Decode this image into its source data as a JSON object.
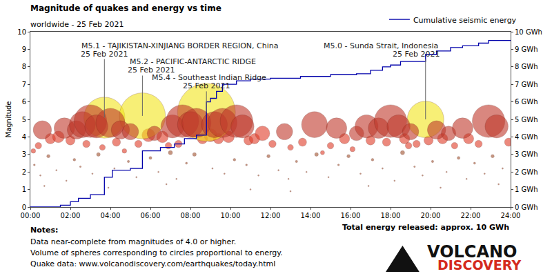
{
  "chart_data": {
    "type": "bubble",
    "title": "Magnitude of quakes and energy vs time",
    "subtitle": "worldwide - 25 Feb 2021",
    "y_label": "Magnitude",
    "xlim": [
      0,
      24
    ],
    "xticks": [
      {
        "value": 0,
        "label": "00:00"
      },
      {
        "value": 2,
        "label": "02:00"
      },
      {
        "value": 4,
        "label": "04:00"
      },
      {
        "value": 6,
        "label": "06:00"
      },
      {
        "value": 8,
        "label": "08:00"
      },
      {
        "value": 10,
        "label": "10:00"
      },
      {
        "value": 12,
        "label": "12:00"
      },
      {
        "value": 14,
        "label": "14:00"
      },
      {
        "value": 16,
        "label": "16:00"
      },
      {
        "value": 18,
        "label": "18:00"
      },
      {
        "value": 20,
        "label": "20:00"
      },
      {
        "value": 22,
        "label": "22:00"
      },
      {
        "value": 24,
        "label": "24:00"
      }
    ],
    "ylim": [
      0,
      10
    ],
    "yticks": [
      0,
      1,
      2,
      3,
      4,
      5,
      6,
      7,
      8,
      9,
      10
    ],
    "y2lim": [
      0,
      10
    ],
    "y2ticks": [
      {
        "value": 0,
        "label": "0 GWh"
      },
      {
        "value": 1,
        "label": "1 GWh"
      },
      {
        "value": 2,
        "label": "2 GWh"
      },
      {
        "value": 3,
        "label": "3 GWh"
      },
      {
        "value": 4,
        "label": "4 GWh"
      },
      {
        "value": 5,
        "label": "5 GWh"
      },
      {
        "value": 6,
        "label": "6 GWh"
      },
      {
        "value": 7,
        "label": "7 GWh"
      },
      {
        "value": 8,
        "label": "8 GWh"
      },
      {
        "value": 9,
        "label": "9 GWh"
      },
      {
        "value": 10,
        "label": "10 GWh"
      }
    ],
    "grid": false,
    "legend": "top right",
    "series": [
      {
        "type": "scatter",
        "marker": "circle",
        "color": "#a0522d",
        "x": [
          0.2,
          0.5,
          0.9,
          1.3,
          1.8,
          2.2,
          2.5,
          3.1,
          3.4,
          4.2,
          4.9,
          5.3,
          6.0,
          6.4,
          7.0,
          7.3,
          7.8,
          8.2,
          9.1,
          9.7,
          10.2,
          10.8,
          11.4,
          11.9,
          12.4,
          12.9,
          13.3,
          13.8,
          14.3,
          14.9,
          15.4,
          15.9,
          16.5,
          17.1,
          17.6,
          18.2,
          18.6,
          19.2,
          19.6,
          20.1,
          20.8,
          21.4,
          21.8,
          22.2,
          22.7,
          23.1,
          23.6,
          0.7,
          3.9,
          6.8,
          11.0,
          13.0,
          16.9,
          20.5,
          23.4
        ],
        "values": [
          2.4,
          1.8,
          2.9,
          2.1,
          1.5,
          2.7,
          2.3,
          1.9,
          3.0,
          2.2,
          2.6,
          1.7,
          2.8,
          2.0,
          3.1,
          1.6,
          2.5,
          3.0,
          2.2,
          1.9,
          2.7,
          2.4,
          1.8,
          2.9,
          2.1,
          1.6,
          2.6,
          2.0,
          3.0,
          1.7,
          2.4,
          2.9,
          1.9,
          2.7,
          2.2,
          1.5,
          3.1,
          2.3,
          1.8,
          2.6,
          2.0,
          2.8,
          1.6,
          2.5,
          1.9,
          2.9,
          2.2,
          1.2,
          1.1,
          1.3,
          1.0,
          0.9,
          1.2,
          1.1,
          1.3
        ]
      },
      {
        "type": "scatter",
        "marker": "circle",
        "color": "#e03c28",
        "x": [
          0.4,
          1.0,
          1.4,
          2.0,
          2.8,
          3.6,
          4.3,
          5.4,
          5.9,
          6.6,
          6.9,
          7.4,
          8.6,
          9.0,
          9.4,
          9.9,
          10.9,
          11.2,
          11.6,
          12.1,
          13.0,
          13.6,
          15.0,
          15.7,
          16.1,
          17.0,
          17.8,
          18.7,
          19.3,
          19.9,
          20.6,
          21.2,
          21.9,
          22.4,
          23.9,
          0.15,
          4.7,
          14.6,
          18.9
        ],
        "values": [
          3.5,
          3.9,
          4.0,
          3.8,
          3.6,
          3.4,
          3.7,
          3.6,
          4.1,
          4.0,
          3.5,
          3.6,
          3.9,
          4.1,
          3.9,
          4.0,
          3.8,
          3.9,
          4.2,
          3.6,
          3.4,
          3.7,
          3.5,
          3.9,
          3.3,
          3.8,
          3.7,
          3.9,
          3.6,
          3.8,
          3.9,
          3.5,
          3.9,
          3.6,
          3.7,
          3.2,
          3.2,
          3.1,
          3.5
        ]
      },
      {
        "type": "scatter",
        "marker": "circle",
        "color": "#f2e51c",
        "x": [
          3.7,
          5.6,
          8.8,
          19.75
        ],
        "values": [
          5.1,
          5.2,
          5.4,
          5.0
        ]
      },
      {
        "type": "scatter",
        "marker": "circle",
        "color": "#c0392b",
        "x": [
          0.6,
          1.7,
          2.3,
          2.6,
          3.0,
          3.3,
          4.0,
          4.5,
          5.0,
          6.2,
          7.1,
          7.6,
          8.0,
          8.3,
          9.2,
          9.6,
          10.3,
          10.6,
          12.7,
          14.2,
          15.3,
          16.3,
          16.8,
          17.4,
          18.0,
          18.4,
          19.0,
          20.3,
          20.9,
          21.6,
          22.9,
          23.3
        ],
        "values": [
          4.4,
          4.5,
          4.4,
          4.7,
          4.9,
          4.6,
          4.8,
          4.4,
          4.3,
          4.2,
          4.6,
          4.9,
          4.7,
          4.8,
          4.7,
          4.8,
          4.9,
          4.6,
          4.3,
          4.7,
          4.5,
          4.2,
          4.6,
          4.5,
          4.9,
          4.6,
          4.3,
          4.4,
          4.2,
          4.5,
          4.9,
          4.6
        ]
      },
      {
        "type": "line",
        "name": "Cumulative seismic energy",
        "color": "#0000aa",
        "axis": "y2",
        "line_style": "solid",
        "x": [
          0,
          1.5,
          2.0,
          2.4,
          3.0,
          3.7,
          4.1,
          5.0,
          5.6,
          6.5,
          7.2,
          7.7,
          8.3,
          8.8,
          9.0,
          9.3,
          9.6,
          10.3,
          11.0,
          12.0,
          13.5,
          15.0,
          16.3,
          17.0,
          17.6,
          18.0,
          18.5,
          19.75,
          20.3,
          21.0,
          21.6,
          22.4,
          22.9,
          24
        ],
        "values": [
          0,
          0.1,
          0.3,
          0.5,
          0.7,
          1.7,
          2.1,
          2.2,
          3.2,
          3.4,
          3.6,
          3.9,
          4.1,
          6.0,
          6.2,
          6.6,
          7.0,
          7.2,
          7.3,
          7.35,
          7.45,
          7.55,
          7.6,
          7.8,
          8.0,
          8.1,
          8.3,
          8.7,
          8.9,
          9.1,
          9.2,
          9.35,
          9.5,
          9.5
        ]
      }
    ],
    "annotations": [
      {
        "text": "M5.1 - TAJIKISTAN-XINJIANG BORDER REGION, China",
        "date": "25 Feb 2021",
        "x": 3.7,
        "y": 5.1
      },
      {
        "text": "M5.2 - PACIFIC-ANTARCTIC RIDGE",
        "date": "25 Feb 2021",
        "x": 5.6,
        "y": 5.2
      },
      {
        "text": "M5.4 - Southeast Indian Ridge",
        "date": "25 Feb 2021",
        "x": 8.8,
        "y": 5.4
      },
      {
        "text": "M5.0 - Sunda Strait, Indonesia",
        "date": "25 Feb 2021",
        "x": 19.75,
        "y": 5.0
      }
    ],
    "notes_title": "Notes:",
    "notes": [
      "Data near-complete from magnitudes of 4.0 or higher.",
      "Volume of spheres corresponding to circles proportional to energy.",
      "Quake data: www.volcanodiscovery.com/earthquakes/today.html"
    ],
    "total_energy": "Total energy released: approx. 10 GWh",
    "logo": [
      "VOLCANO",
      "DISCOVERY"
    ]
  }
}
